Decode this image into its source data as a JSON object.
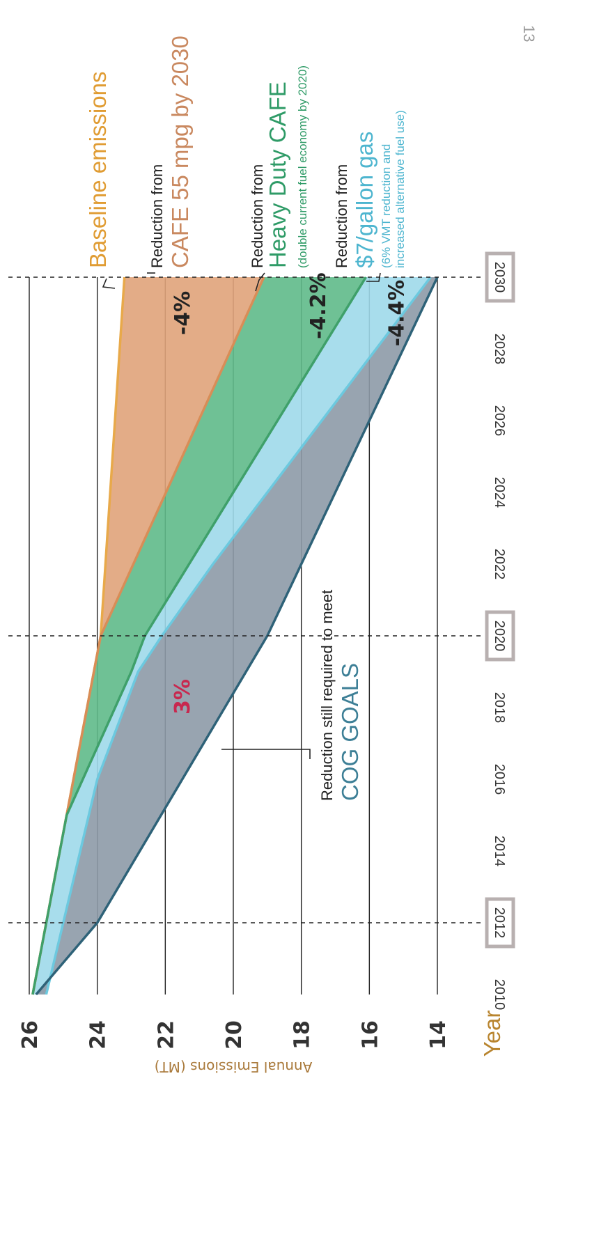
{
  "page_number": "13",
  "chart_data": {
    "type": "area",
    "xlabel": "Year",
    "ylabel": "Annual Emissions (MT)",
    "xlim": [
      2010,
      2030
    ],
    "ylim": [
      14,
      26
    ],
    "x_ticks": [
      "2010",
      "2012",
      "2014",
      "2016",
      "2018",
      "2020",
      "2022",
      "2024",
      "2026",
      "2028",
      "2030"
    ],
    "highlighted_years": [
      "2012",
      "2020",
      "2030"
    ],
    "y_ticks": [
      "26",
      "24",
      "22",
      "20",
      "18",
      "16",
      "14"
    ],
    "colors": {
      "baseline": "#e8a94a",
      "cafe": "#e0a37a",
      "heavy_duty": "#5fba8a",
      "gas": "#9fd9ea",
      "cog": "#8d9aa7",
      "cog_line": "#2e6278",
      "pct_dark": "#222222",
      "pct_red": "#c8284f"
    },
    "series": [
      {
        "key": "baseline",
        "x": [
          2010,
          2015,
          2020,
          2030
        ],
        "y": [
          25.9,
          24.9,
          23.9,
          23.2
        ]
      },
      {
        "key": "cafe",
        "x": [
          2010,
          2015,
          2020,
          2030
        ],
        "y": [
          25.9,
          24.9,
          23.9,
          19.1
        ]
      },
      {
        "key": "heavy_duty",
        "x": [
          2010,
          2015,
          2019,
          2020,
          2030
        ],
        "y": [
          25.9,
          24.9,
          23.0,
          22.6,
          16.1
        ]
      },
      {
        "key": "gas",
        "x": [
          2010,
          2012,
          2016,
          2019,
          2020,
          2022,
          2030
        ],
        "y": [
          25.5,
          25.0,
          24.0,
          22.8,
          22.1,
          20.6,
          14.2
        ]
      },
      {
        "key": "cog",
        "x": [
          2010,
          2012,
          2020,
          2030
        ],
        "y": [
          25.8,
          24.0,
          19.0,
          14.0
        ]
      }
    ],
    "labels": {
      "baseline": {
        "title": "Baseline emissions"
      },
      "cafe": {
        "prefix": "Reduction from",
        "title": "CAFE 55 mpg by 2030"
      },
      "heavy_duty": {
        "prefix": "Reduction from",
        "title": "Heavy Duty CAFE",
        "note": "(double current fuel economy by 2020)"
      },
      "gas": {
        "prefix": "Reduction from",
        "title": "$7/gallon gas",
        "note1": "(6% VMT reduction and",
        "note2": "increased alternative fuel use)"
      },
      "cog": {
        "prefix": "Reduction still required to meet",
        "title": "COG GOALS"
      }
    },
    "annotations": [
      {
        "text": "-4%",
        "x": 2029.0,
        "y": 21.5,
        "color": "pct_dark"
      },
      {
        "text": "-4.2%",
        "x": 2029.2,
        "y": 17.5,
        "color": "pct_dark"
      },
      {
        "text": "-4.4%",
        "x": 2029.0,
        "y": 15.2,
        "color": "pct_dark"
      },
      {
        "text": "3%",
        "x": 2018.3,
        "y": 21.5,
        "color": "pct_red"
      }
    ]
  }
}
